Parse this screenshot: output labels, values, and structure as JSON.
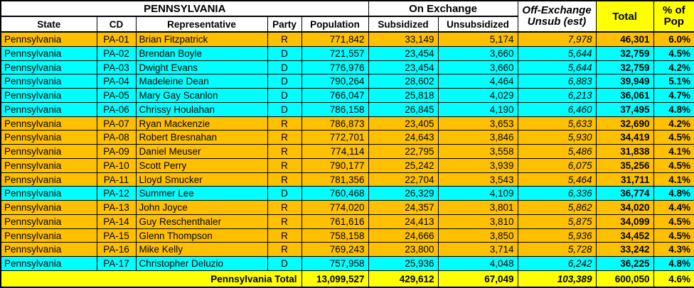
{
  "colors": {
    "republican_row": "#FFC000",
    "democrat_row": "#00FFFF",
    "highlight_yellow": "#FFFF00",
    "header_bg": "#FFFFFF",
    "border": "#000000",
    "text": "#000000"
  },
  "table": {
    "title": "PENNSYLVANIA",
    "headers": {
      "state": "State",
      "cd": "CD",
      "representative": "Representative",
      "party": "Party",
      "population": "Population",
      "on_exchange": "On Exchange",
      "subsidized": "Subsidized",
      "unsubsidized": "Unsubsidized",
      "off_exchange_line1": "Off-Exchange",
      "off_exchange_line2": "Unsub (est)",
      "total": "Total",
      "pct_line1": "% of",
      "pct_line2": "Pop"
    },
    "rows": [
      {
        "state": "Pennsylvania",
        "cd": "PA-01",
        "representative": "Brian Fitzpatrick",
        "party": "R",
        "population": "771,842",
        "subsidized": "33,149",
        "unsubsidized": "5,174",
        "off_exchange": "7,978",
        "total": "46,301",
        "pct": "6.0%"
      },
      {
        "state": "Pennsylvania",
        "cd": "PA-02",
        "representative": "Brendan Boyle",
        "party": "D",
        "population": "721,557",
        "subsidized": "23,454",
        "unsubsidized": "3,660",
        "off_exchange": "5,644",
        "total": "32,759",
        "pct": "4.5%"
      },
      {
        "state": "Pennsylvania",
        "cd": "PA-03",
        "representative": "Dwight Evans",
        "party": "D",
        "population": "776,976",
        "subsidized": "23,454",
        "unsubsidized": "3,660",
        "off_exchange": "5,644",
        "total": "32,759",
        "pct": "4.2%"
      },
      {
        "state": "Pennsylvania",
        "cd": "PA-04",
        "representative": "Madeleine Dean",
        "party": "D",
        "population": "790,264",
        "subsidized": "28,602",
        "unsubsidized": "4,464",
        "off_exchange": "6,883",
        "total": "39,949",
        "pct": "5.1%"
      },
      {
        "state": "Pennsylvania",
        "cd": "PA-05",
        "representative": "Mary Gay Scanlon",
        "party": "D",
        "population": "766,047",
        "subsidized": "25,818",
        "unsubsidized": "4,029",
        "off_exchange": "6,213",
        "total": "36,061",
        "pct": "4.7%"
      },
      {
        "state": "Pennsylvania",
        "cd": "PA-06",
        "representative": "Chrissy Houlahan",
        "party": "D",
        "population": "786,158",
        "subsidized": "26,845",
        "unsubsidized": "4,190",
        "off_exchange": "6,460",
        "total": "37,495",
        "pct": "4.8%"
      },
      {
        "state": "Pennsylvania",
        "cd": "PA-07",
        "representative": "Ryan Mackenzie",
        "party": "R",
        "population": "786,873",
        "subsidized": "23,405",
        "unsubsidized": "3,653",
        "off_exchange": "5,633",
        "total": "32,690",
        "pct": "4.2%"
      },
      {
        "state": "Pennsylvania",
        "cd": "PA-08",
        "representative": "Robert Bresnahan",
        "party": "R",
        "population": "772,701",
        "subsidized": "24,643",
        "unsubsidized": "3,846",
        "off_exchange": "5,930",
        "total": "34,419",
        "pct": "4.5%"
      },
      {
        "state": "Pennsylvania",
        "cd": "PA-09",
        "representative": "Daniel Meuser",
        "party": "R",
        "population": "774,114",
        "subsidized": "22,795",
        "unsubsidized": "3,558",
        "off_exchange": "5,486",
        "total": "31,838",
        "pct": "4.1%"
      },
      {
        "state": "Pennsylvania",
        "cd": "PA-10",
        "representative": "Scott Perry",
        "party": "R",
        "population": "790,177",
        "subsidized": "25,242",
        "unsubsidized": "3,939",
        "off_exchange": "6,075",
        "total": "35,256",
        "pct": "4.5%"
      },
      {
        "state": "Pennsylvania",
        "cd": "PA-11",
        "representative": "Lloyd Smucker",
        "party": "R",
        "population": "781,356",
        "subsidized": "22,704",
        "unsubsidized": "3,543",
        "off_exchange": "5,464",
        "total": "31,711",
        "pct": "4.1%"
      },
      {
        "state": "Pennsylvania",
        "cd": "PA-12",
        "representative": "Summer Lee",
        "party": "D",
        "population": "760,468",
        "subsidized": "26,329",
        "unsubsidized": "4,109",
        "off_exchange": "6,336",
        "total": "36,774",
        "pct": "4.8%"
      },
      {
        "state": "Pennsylvania",
        "cd": "PA-13",
        "representative": "John Joyce",
        "party": "R",
        "population": "774,020",
        "subsidized": "24,357",
        "unsubsidized": "3,801",
        "off_exchange": "5,862",
        "total": "34,020",
        "pct": "4.4%"
      },
      {
        "state": "Pennsylvania",
        "cd": "PA-14",
        "representative": "Guy Reschenthaler",
        "party": "R",
        "population": "761,616",
        "subsidized": "24,413",
        "unsubsidized": "3,810",
        "off_exchange": "5,875",
        "total": "34,099",
        "pct": "4.5%"
      },
      {
        "state": "Pennsylvania",
        "cd": "PA-15",
        "representative": "Glenn Thompson",
        "party": "R",
        "population": "758,158",
        "subsidized": "24,666",
        "unsubsidized": "3,850",
        "off_exchange": "5,936",
        "total": "34,452",
        "pct": "4.5%"
      },
      {
        "state": "Pennsylvania",
        "cd": "PA-16",
        "representative": "Mike Kelly",
        "party": "R",
        "population": "769,243",
        "subsidized": "23,800",
        "unsubsidized": "3,714",
        "off_exchange": "5,728",
        "total": "33,242",
        "pct": "4.3%"
      },
      {
        "state": "Pennsylvania",
        "cd": "PA-17",
        "representative": "Christopher Deluzio",
        "party": "D",
        "population": "757,958",
        "subsidized": "25,936",
        "unsubsidized": "4,048",
        "off_exchange": "6,242",
        "total": "36,225",
        "pct": "4.8%"
      }
    ],
    "total_row": {
      "label": "Pennsylvania Total",
      "population": "13,099,527",
      "subsidized": "429,612",
      "unsubsidized": "67,049",
      "off_exchange": "103,389",
      "total": "600,050",
      "pct": "4.6%"
    }
  }
}
